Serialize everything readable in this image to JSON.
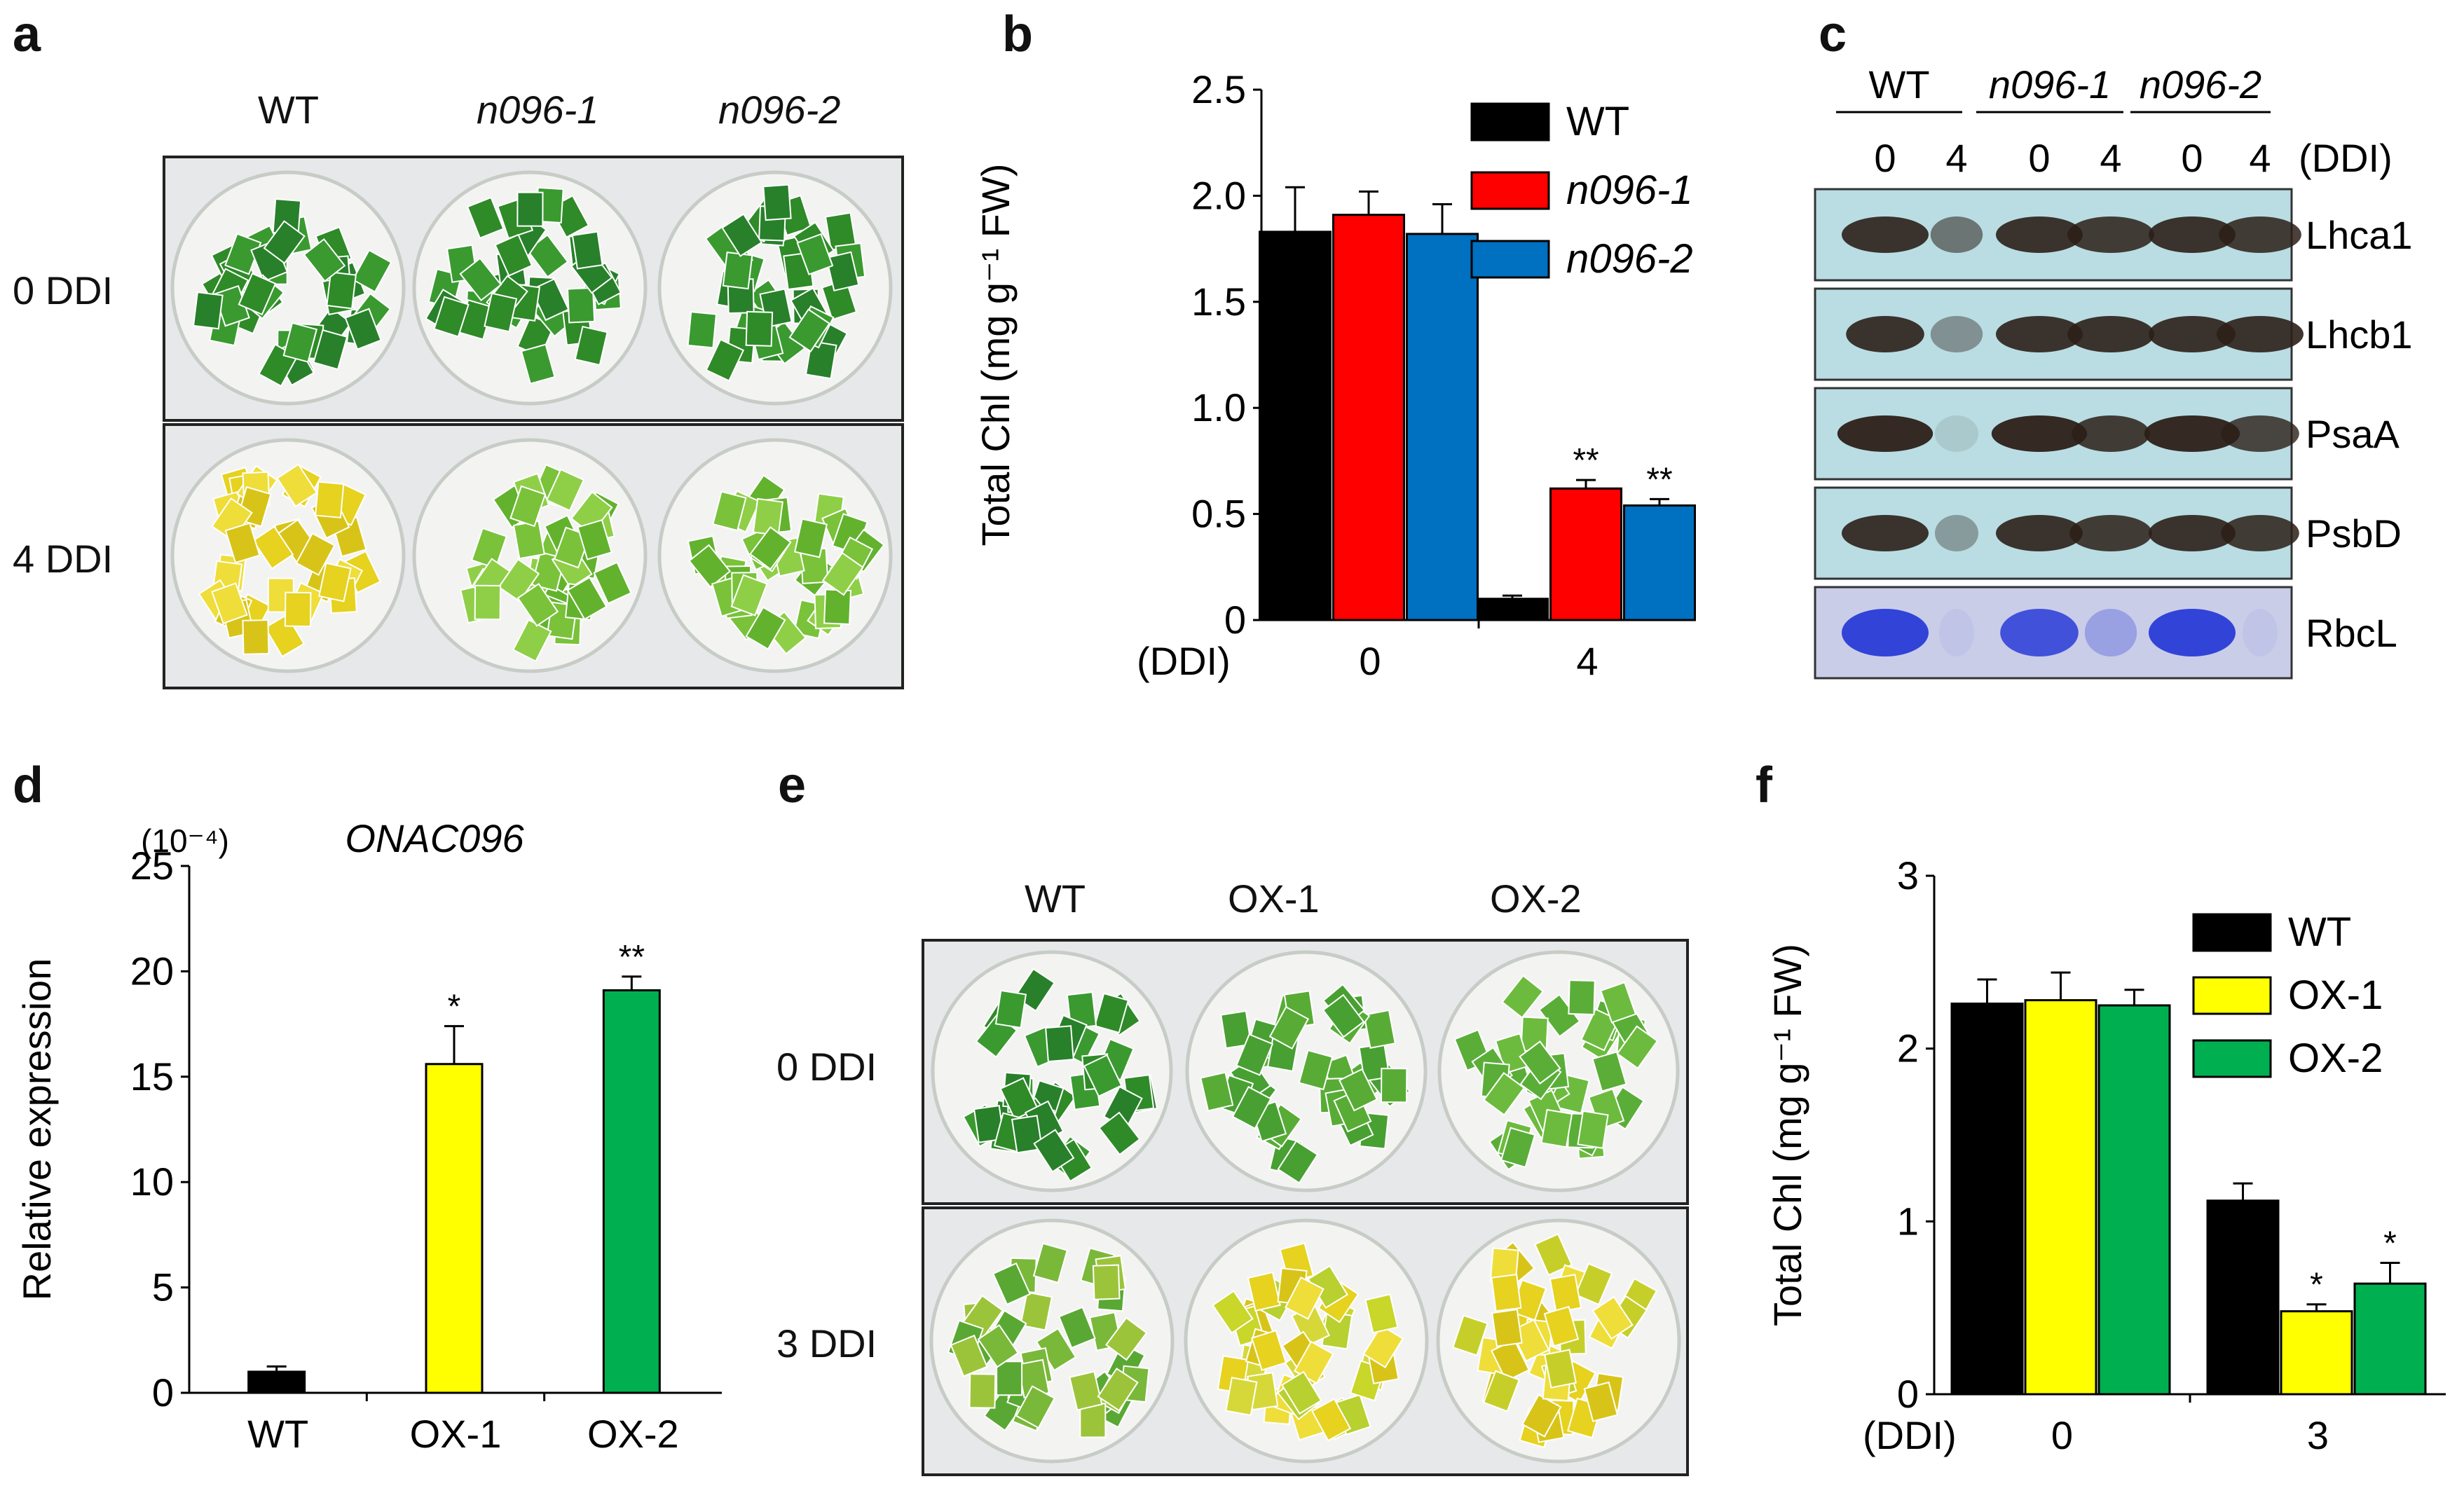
{
  "panel_labels": {
    "a": "a",
    "b": "b",
    "c": "c",
    "d": "d",
    "e": "e",
    "f": "f"
  },
  "panel_a": {
    "columns": [
      "WT",
      "n096-1",
      "n096-2"
    ],
    "rows": [
      "0 DDI",
      "4 DDI"
    ],
    "colors": {
      "green": "#2f8f2a",
      "yellow": "#e3cf1a",
      "lightgreen": "#7fc43a"
    }
  },
  "panel_c": {
    "groups": [
      "WT",
      "n096-1",
      "n096-2"
    ],
    "lanes": [
      "0",
      "4",
      "0",
      "4",
      "0",
      "4"
    ],
    "unit": "(DDI)",
    "proteins": [
      "Lhca1",
      "Lhcb1",
      "PsaA",
      "PsbD",
      "RbcL"
    ],
    "blot_bg": "#b9dde3",
    "stain_bg": "#c9cde8"
  },
  "panel_e": {
    "columns": [
      "WT",
      "OX-1",
      "OX-2"
    ],
    "rows": [
      "0 DDI",
      "3 DDI"
    ]
  },
  "chart_data": [
    {
      "id": "b",
      "type": "bar",
      "xlabel": "(DDI)",
      "ylabel": "Total Chl (mg g⁻¹ FW)",
      "ylim": [
        0,
        2.5
      ],
      "yticks": [
        "0",
        "0.5",
        "1.0",
        "1.5",
        "2.0",
        "2.5"
      ],
      "categories": [
        "0",
        "4"
      ],
      "legend_position": "top-right",
      "series": [
        {
          "name": "WT",
          "color": "#000000",
          "values": [
            1.83,
            0.1
          ],
          "errors": [
            0.21,
            0.015
          ],
          "marks": [
            "",
            ""
          ]
        },
        {
          "name": "n096-1",
          "color": "#ff0000",
          "values": [
            1.91,
            0.62
          ],
          "errors": [
            0.11,
            0.04
          ],
          "marks": [
            "",
            "**"
          ]
        },
        {
          "name": "n096-2",
          "color": "#0070c0",
          "values": [
            1.82,
            0.54
          ],
          "errors": [
            0.14,
            0.03
          ],
          "marks": [
            "",
            "**"
          ]
        }
      ]
    },
    {
      "id": "d",
      "type": "bar",
      "title": "ONAC096",
      "ylabel": "Relative expression",
      "yunit": "(10⁻⁴)",
      "ylim": [
        0,
        25
      ],
      "yticks": [
        "0",
        "5",
        "10",
        "15",
        "20",
        "25"
      ],
      "categories": [
        "WT",
        "OX-1",
        "OX-2"
      ],
      "series": [
        {
          "name": "",
          "colors": [
            "#000000",
            "#ffff00",
            "#00b050"
          ],
          "values": [
            1.0,
            15.6,
            19.1
          ],
          "errors": [
            0.25,
            1.8,
            0.65
          ],
          "marks": [
            "",
            "*",
            "**"
          ]
        }
      ]
    },
    {
      "id": "f",
      "type": "bar",
      "xlabel": "(DDI)",
      "ylabel": "Total Chl (mg g⁻¹ FW)",
      "ylim": [
        0,
        3
      ],
      "yticks": [
        "0",
        "1",
        "2",
        "3"
      ],
      "categories": [
        "0",
        "3"
      ],
      "legend_position": "top-right",
      "series": [
        {
          "name": "WT",
          "color": "#000000",
          "values": [
            2.26,
            1.12
          ],
          "errors": [
            0.14,
            0.1
          ],
          "marks": [
            "",
            ""
          ]
        },
        {
          "name": "OX-1",
          "color": "#ffff00",
          "values": [
            2.28,
            0.48
          ],
          "errors": [
            0.16,
            0.04
          ],
          "marks": [
            "",
            "*"
          ]
        },
        {
          "name": "OX-2",
          "color": "#00b050",
          "values": [
            2.25,
            0.64
          ],
          "errors": [
            0.09,
            0.12
          ],
          "marks": [
            "",
            "*"
          ]
        }
      ]
    }
  ]
}
